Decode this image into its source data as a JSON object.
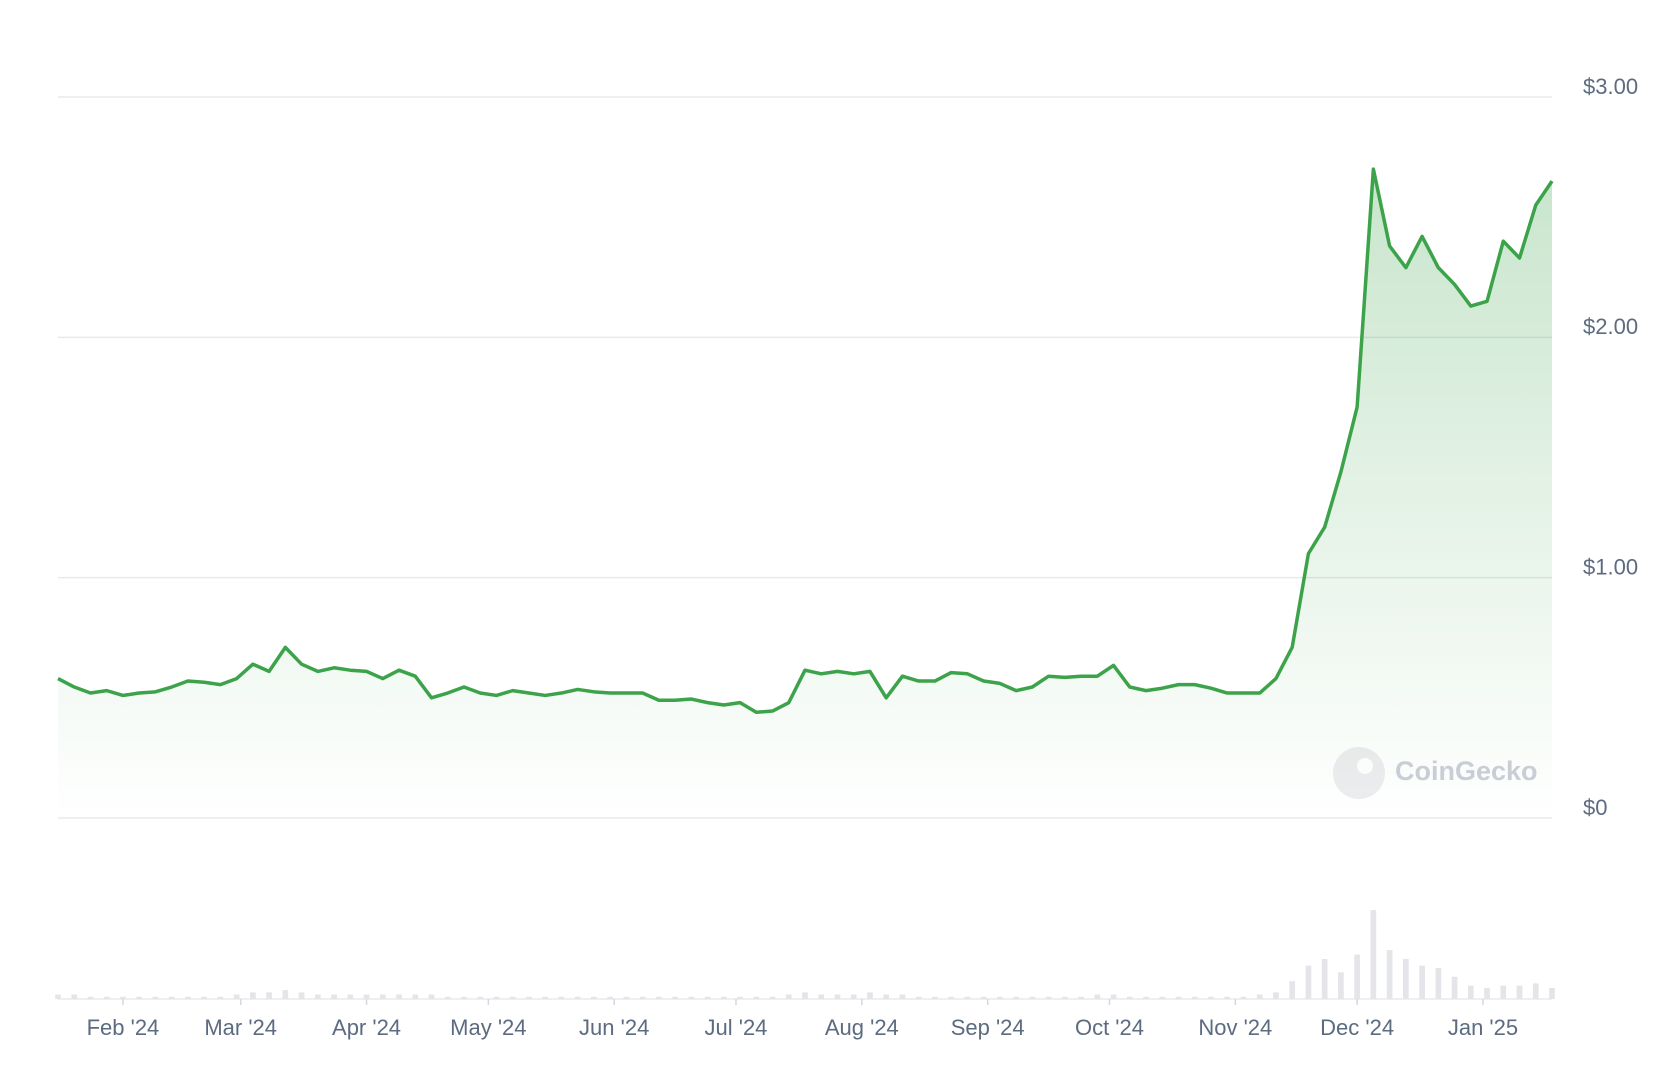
{
  "chart_data": {
    "type": "area",
    "watermark": "CoinGecko",
    "color": "#3ca34a",
    "grid": true,
    "values": [
      0.58,
      0.545,
      0.52,
      0.53,
      0.51,
      0.52,
      0.525,
      0.545,
      0.57,
      0.565,
      0.555,
      0.58,
      0.64,
      0.61,
      0.71,
      0.64,
      0.61,
      0.625,
      0.615,
      0.61,
      0.58,
      0.615,
      0.59,
      0.5,
      0.52,
      0.545,
      0.52,
      0.51,
      0.53,
      0.52,
      0.51,
      0.52,
      0.535,
      0.525,
      0.52,
      0.52,
      0.52,
      0.49,
      0.49,
      0.495,
      0.48,
      0.47,
      0.48,
      0.44,
      0.445,
      0.48,
      0.615,
      0.6,
      0.61,
      0.6,
      0.61,
      0.5,
      0.59,
      0.57,
      0.57,
      0.605,
      0.6,
      0.57,
      0.56,
      0.53,
      0.545,
      0.59,
      0.585,
      0.59,
      0.59,
      0.635,
      0.545,
      0.53,
      0.54,
      0.555,
      0.555,
      0.54,
      0.52,
      0.52,
      0.52,
      0.58,
      0.71,
      1.1,
      1.21,
      1.44,
      1.71,
      2.7,
      2.38,
      2.29,
      2.42,
      2.29,
      2.22,
      2.13,
      2.15,
      2.4,
      2.33,
      2.55,
      2.65
    ],
    "volume_values": [
      2,
      2,
      1,
      1,
      1,
      1,
      1,
      1,
      1,
      1,
      1,
      2,
      3,
      3,
      4,
      3,
      2,
      2,
      2,
      2,
      2,
      2,
      2,
      2,
      1,
      1,
      1,
      1,
      1,
      1,
      1,
      1,
      1,
      1,
      1,
      1,
      1,
      1,
      1,
      1,
      1,
      1,
      1,
      1,
      1,
      2,
      3,
      2,
      2,
      2,
      3,
      2,
      2,
      1,
      1,
      1,
      1,
      1,
      1,
      1,
      1,
      1,
      1,
      1,
      2,
      2,
      1,
      1,
      1,
      1,
      1,
      1,
      1,
      1,
      2,
      3,
      8,
      15,
      18,
      12,
      20,
      40,
      22,
      18,
      15,
      14,
      10,
      6,
      5,
      6,
      6,
      7,
      5
    ],
    "volume_lim": [
      0,
      45
    ],
    "xlim": [
      0,
      92
    ],
    "xticks": [
      {
        "value": 4,
        "label": "Feb '24"
      },
      {
        "value": 11.25,
        "label": "Mar '24"
      },
      {
        "value": 19,
        "label": "Apr '24"
      },
      {
        "value": 26.5,
        "label": "May '24"
      },
      {
        "value": 34.25,
        "label": "Jun '24"
      },
      {
        "value": 41.75,
        "label": "Jul '24"
      },
      {
        "value": 49.5,
        "label": "Aug '24"
      },
      {
        "value": 57.25,
        "label": "Sep '24"
      },
      {
        "value": 64.75,
        "label": "Oct '24"
      },
      {
        "value": 72.5,
        "label": "Nov '24"
      },
      {
        "value": 80,
        "label": "Dec '24"
      },
      {
        "value": 87.75,
        "label": "Jan '25"
      }
    ],
    "ylim": [
      0,
      3
    ],
    "yticks": [
      {
        "value": 0,
        "label": "$0"
      },
      {
        "value": 1,
        "label": "$1.00"
      },
      {
        "value": 2,
        "label": "$2.00"
      },
      {
        "value": 3,
        "label": "$3.00"
      }
    ]
  }
}
